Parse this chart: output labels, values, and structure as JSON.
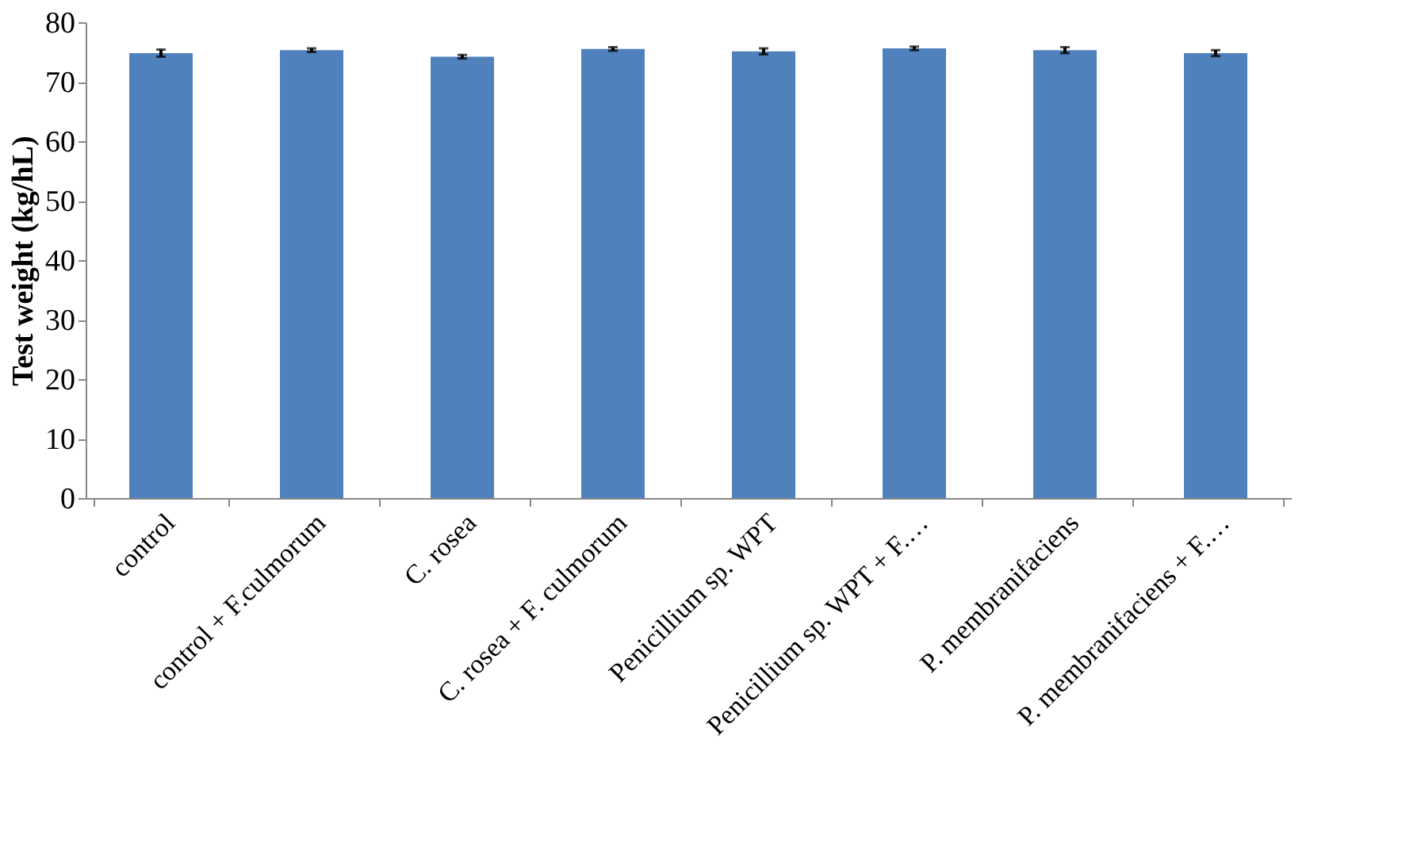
{
  "chart_data": {
    "type": "bar",
    "ylabel": "Test weight (kg/hL)",
    "categories": [
      "control",
      "control + F.culmorum",
      "C. rosea",
      "C. rosea + F. culmorum",
      "Penicillium sp. WPT",
      "Penicillium sp. WPT + F.…",
      "P. membranifaciens",
      "P. membranifaciens + F.…"
    ],
    "values": [
      74.8,
      75.3,
      74.2,
      75.5,
      75.1,
      75.6,
      75.3,
      74.8
    ],
    "errors": [
      0.6,
      0.3,
      0.3,
      0.3,
      0.5,
      0.3,
      0.5,
      0.5
    ],
    "color": "#4f81bd",
    "ylim": [
      0,
      80
    ],
    "yticks": [
      0,
      10,
      20,
      30,
      40,
      50,
      60,
      70,
      80
    ],
    "grid": false
  }
}
